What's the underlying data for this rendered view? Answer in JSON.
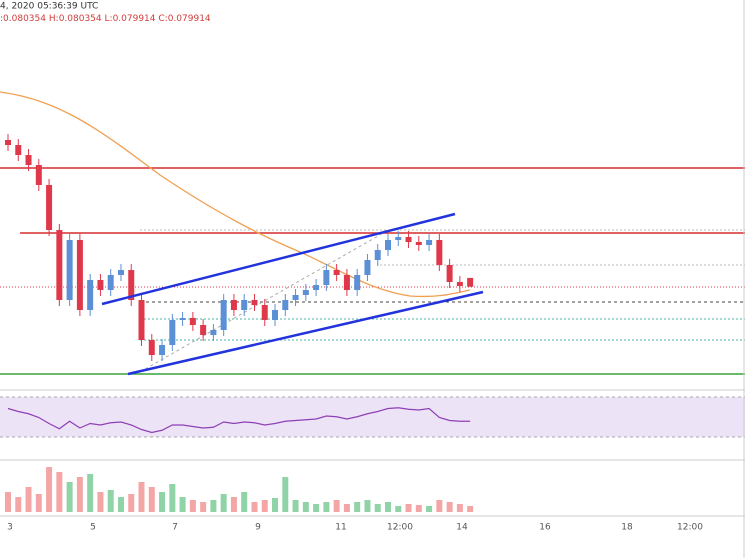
{
  "header": {
    "timestamp": "4, 2020 05:36:39 UTC",
    "ohlc_labels": [
      ":",
      "H:",
      "L:",
      "C:"
    ]
  },
  "chart_data": {
    "type": "candlestick",
    "open": [
      0.08725,
      0.087,
      0.0865,
      0.086,
      0.085,
      0.08275,
      0.07925,
      0.08225,
      0.07875,
      0.08025,
      0.07975,
      0.0805,
      0.08075,
      0.07925,
      0.07725,
      0.0765,
      0.077,
      0.07825,
      0.07835,
      0.078,
      0.0775,
      0.07775,
      0.07925,
      0.07875,
      0.07925,
      0.079,
      0.07825,
      0.07875,
      0.07925,
      0.0795,
      0.07975,
      0.08,
      0.08075,
      0.0805,
      0.07975,
      0.0805,
      0.08125,
      0.08175,
      0.08225,
      0.0824,
      0.08215,
      0.082,
      0.08225,
      0.081,
      0.08015,
      0.080354
    ],
    "high": [
      0.08755,
      0.0873,
      0.0868,
      0.0863,
      0.0853,
      0.08305,
      0.08255,
      0.08255,
      0.08055,
      0.08055,
      0.0808,
      0.08105,
      0.08105,
      0.07955,
      0.07755,
      0.0773,
      0.07855,
      0.07865,
      0.07865,
      0.0783,
      0.07805,
      0.07955,
      0.07955,
      0.07955,
      0.07955,
      0.0793,
      0.07905,
      0.07955,
      0.0798,
      0.08005,
      0.0803,
      0.08105,
      0.08105,
      0.0808,
      0.0808,
      0.08155,
      0.08205,
      0.08255,
      0.0827,
      0.0827,
      0.08245,
      0.08255,
      0.08255,
      0.0813,
      0.08045,
      0.080354
    ],
    "low": [
      0.0867,
      0.0862,
      0.0857,
      0.0847,
      0.08245,
      0.07895,
      0.07895,
      0.07845,
      0.07845,
      0.07945,
      0.07945,
      0.0802,
      0.07895,
      0.07695,
      0.0762,
      0.0762,
      0.0767,
      0.07795,
      0.0777,
      0.0772,
      0.0772,
      0.07745,
      0.07845,
      0.07845,
      0.0787,
      0.07795,
      0.07795,
      0.07845,
      0.07895,
      0.0792,
      0.07945,
      0.0797,
      0.0802,
      0.07945,
      0.07945,
      0.0802,
      0.08095,
      0.08145,
      0.08195,
      0.08185,
      0.0817,
      0.0817,
      0.0807,
      0.07985,
      0.07965,
      0.079914
    ],
    "close": [
      0.087,
      0.0865,
      0.086,
      0.085,
      0.08275,
      0.07925,
      0.08225,
      0.07875,
      0.08025,
      0.07975,
      0.0805,
      0.08075,
      0.07925,
      0.07725,
      0.0765,
      0.077,
      0.07825,
      0.07835,
      0.078,
      0.0775,
      0.07775,
      0.07925,
      0.07875,
      0.07925,
      0.079,
      0.07825,
      0.07875,
      0.07925,
      0.0795,
      0.07975,
      0.08,
      0.08075,
      0.0805,
      0.07975,
      0.0805,
      0.08125,
      0.08175,
      0.08225,
      0.0824,
      0.08215,
      0.082,
      0.08225,
      0.081,
      0.08015,
      0.07995,
      0.079914
    ],
    "ylim": [
      0.07525,
      0.08825
    ],
    "up_color": "#5b8fd6",
    "down_color": "#e0384b",
    "rsi": [
      62,
      58,
      55,
      50,
      42,
      35,
      45,
      36,
      42,
      40,
      43,
      44,
      40,
      34,
      30,
      33,
      40,
      40,
      38,
      36,
      37,
      44,
      42,
      44,
      43,
      40,
      42,
      45,
      46,
      47,
      48,
      52,
      51,
      48,
      51,
      55,
      58,
      62,
      63,
      61,
      60,
      62,
      50,
      46,
      45,
      45
    ],
    "rsi_ylim": [
      20,
      80
    ],
    "rsi_color": "#8e3fb5",
    "volume": [
      20,
      15,
      25,
      18,
      45,
      40,
      30,
      35,
      38,
      20,
      22,
      15,
      18,
      30,
      25,
      20,
      28,
      15,
      12,
      10,
      12,
      18,
      15,
      20,
      10,
      12,
      14,
      35,
      12,
      10,
      8,
      10,
      12,
      8,
      10,
      12,
      8,
      10,
      6,
      8,
      7,
      6,
      12,
      10,
      8,
      6
    ],
    "volume_ylim": [
      0,
      50
    ],
    "x_labels": [
      "3",
      "5",
      "7",
      "9",
      "11",
      "12:00",
      "14",
      "16",
      "18",
      "12:00"
    ]
  }
}
